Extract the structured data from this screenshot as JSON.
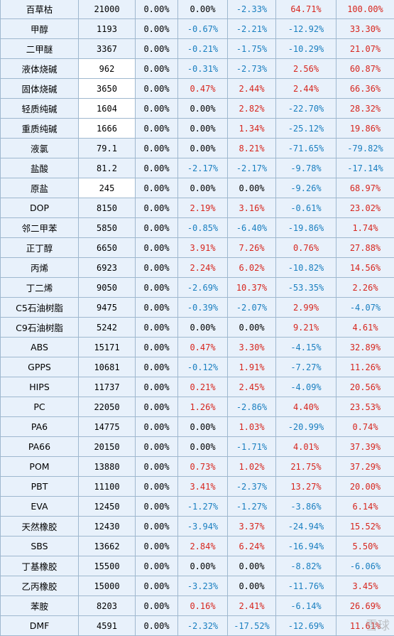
{
  "watermark": "雪球",
  "colors": {
    "positive": "#d7261e",
    "negative": "#1a7fc0",
    "cell_bg": "#e8f1fb",
    "grid": "#9fb8cf"
  },
  "rows": [
    {
      "name": "百草枯",
      "price": "21000",
      "c1": "0.00%",
      "c2": "0.00%",
      "c3": "-2.33%",
      "c4": "64.71%",
      "c5": "100.00%",
      "white": false
    },
    {
      "name": "甲醇",
      "price": "1193",
      "c1": "0.00%",
      "c2": "-0.67%",
      "c3": "-2.21%",
      "c4": "-12.92%",
      "c5": "33.30%",
      "white": false
    },
    {
      "name": "二甲醚",
      "price": "3367",
      "c1": "0.00%",
      "c2": "-0.21%",
      "c3": "-1.75%",
      "c4": "-10.29%",
      "c5": "21.07%",
      "white": false
    },
    {
      "name": "液体烧碱",
      "price": "962",
      "c1": "0.00%",
      "c2": "-0.31%",
      "c3": "-2.73%",
      "c4": "2.56%",
      "c5": "60.87%",
      "white": true
    },
    {
      "name": "固体烧碱",
      "price": "3650",
      "c1": "0.00%",
      "c2": "0.47%",
      "c3": "2.44%",
      "c4": "2.44%",
      "c5": "66.36%",
      "white": true
    },
    {
      "name": "轻质纯碱",
      "price": "1604",
      "c1": "0.00%",
      "c2": "0.00%",
      "c3": "2.82%",
      "c4": "-22.70%",
      "c5": "28.32%",
      "white": true
    },
    {
      "name": "重质纯碱",
      "price": "1666",
      "c1": "0.00%",
      "c2": "0.00%",
      "c3": "1.34%",
      "c4": "-25.12%",
      "c5": "19.86%",
      "white": true
    },
    {
      "name": "液氯",
      "price": "79.1",
      "c1": "0.00%",
      "c2": "0.00%",
      "c3": "8.21%",
      "c4": "-71.65%",
      "c5": "-79.82%",
      "white": false
    },
    {
      "name": "盐酸",
      "price": "81.2",
      "c1": "0.00%",
      "c2": "-2.17%",
      "c3": "-2.17%",
      "c4": "-9.78%",
      "c5": "-17.14%",
      "white": false
    },
    {
      "name": "原盐",
      "price": "245",
      "c1": "0.00%",
      "c2": "0.00%",
      "c3": "0.00%",
      "c4": "-9.26%",
      "c5": "68.97%",
      "white": true
    },
    {
      "name": "DOP",
      "price": "8150",
      "c1": "0.00%",
      "c2": "2.19%",
      "c3": "3.16%",
      "c4": "-0.61%",
      "c5": "23.02%",
      "white": false
    },
    {
      "name": "邻二甲苯",
      "price": "5850",
      "c1": "0.00%",
      "c2": "-0.85%",
      "c3": "-6.40%",
      "c4": "-19.86%",
      "c5": "1.74%",
      "white": false
    },
    {
      "name": "正丁醇",
      "price": "6650",
      "c1": "0.00%",
      "c2": "3.91%",
      "c3": "7.26%",
      "c4": "0.76%",
      "c5": "27.88%",
      "white": false
    },
    {
      "name": "丙烯",
      "price": "6923",
      "c1": "0.00%",
      "c2": "2.24%",
      "c3": "6.02%",
      "c4": "-10.82%",
      "c5": "14.56%",
      "white": false
    },
    {
      "name": "丁二烯",
      "price": "9050",
      "c1": "0.00%",
      "c2": "-2.69%",
      "c3": "10.37%",
      "c4": "-53.35%",
      "c5": "2.26%",
      "white": false
    },
    {
      "name": "C5石油树脂",
      "price": "9475",
      "c1": "0.00%",
      "c2": "-0.39%",
      "c3": "-2.07%",
      "c4": "2.99%",
      "c5": "-4.07%",
      "white": false
    },
    {
      "name": "C9石油树脂",
      "price": "5242",
      "c1": "0.00%",
      "c2": "0.00%",
      "c3": "0.00%",
      "c4": "9.21%",
      "c5": "4.61%",
      "white": false
    },
    {
      "name": "ABS",
      "price": "15171",
      "c1": "0.00%",
      "c2": "0.47%",
      "c3": "3.30%",
      "c4": "-4.15%",
      "c5": "32.89%",
      "white": false
    },
    {
      "name": "GPPS",
      "price": "10681",
      "c1": "0.00%",
      "c2": "-0.12%",
      "c3": "1.91%",
      "c4": "-7.27%",
      "c5": "11.26%",
      "white": false
    },
    {
      "name": "HIPS",
      "price": "11737",
      "c1": "0.00%",
      "c2": "0.21%",
      "c3": "2.45%",
      "c4": "-4.09%",
      "c5": "20.56%",
      "white": false
    },
    {
      "name": "PC",
      "price": "22050",
      "c1": "0.00%",
      "c2": "1.26%",
      "c3": "-2.86%",
      "c4": "4.40%",
      "c5": "23.53%",
      "white": false
    },
    {
      "name": "PA6",
      "price": "14775",
      "c1": "0.00%",
      "c2": "0.00%",
      "c3": "1.03%",
      "c4": "-20.99%",
      "c5": "0.74%",
      "white": false
    },
    {
      "name": "PA66",
      "price": "20150",
      "c1": "0.00%",
      "c2": "0.00%",
      "c3": "-1.71%",
      "c4": "4.01%",
      "c5": "37.39%",
      "white": false
    },
    {
      "name": "POM",
      "price": "13880",
      "c1": "0.00%",
      "c2": "0.73%",
      "c3": "1.02%",
      "c4": "21.75%",
      "c5": "37.29%",
      "white": false
    },
    {
      "name": "PBT",
      "price": "11100",
      "c1": "0.00%",
      "c2": "3.41%",
      "c3": "-2.37%",
      "c4": "13.27%",
      "c5": "20.00%",
      "white": false
    },
    {
      "name": "EVA",
      "price": "12450",
      "c1": "0.00%",
      "c2": "-1.27%",
      "c3": "-1.27%",
      "c4": "-3.86%",
      "c5": "6.14%",
      "white": false
    },
    {
      "name": "天然橡胶",
      "price": "12430",
      "c1": "0.00%",
      "c2": "-3.94%",
      "c3": "3.37%",
      "c4": "-24.94%",
      "c5": "15.52%",
      "white": false
    },
    {
      "name": "SBS",
      "price": "13662",
      "c1": "0.00%",
      "c2": "2.84%",
      "c3": "6.24%",
      "c4": "-16.94%",
      "c5": "5.50%",
      "white": false
    },
    {
      "name": "丁基橡胶",
      "price": "15500",
      "c1": "0.00%",
      "c2": "0.00%",
      "c3": "0.00%",
      "c4": "-8.82%",
      "c5": "-6.06%",
      "white": false
    },
    {
      "name": "乙丙橡胶",
      "price": "15000",
      "c1": "0.00%",
      "c2": "-3.23%",
      "c3": "0.00%",
      "c4": "-11.76%",
      "c5": "3.45%",
      "white": false
    },
    {
      "name": "苯胺",
      "price": "8203",
      "c1": "0.00%",
      "c2": "0.16%",
      "c3": "2.41%",
      "c4": "-6.14%",
      "c5": "26.69%",
      "white": false
    },
    {
      "name": "DMF",
      "price": "4591",
      "c1": "0.00%",
      "c2": "-2.32%",
      "c3": "-17.52%",
      "c4": "-12.69%",
      "c5": "11.61%",
      "white": false
    }
  ]
}
